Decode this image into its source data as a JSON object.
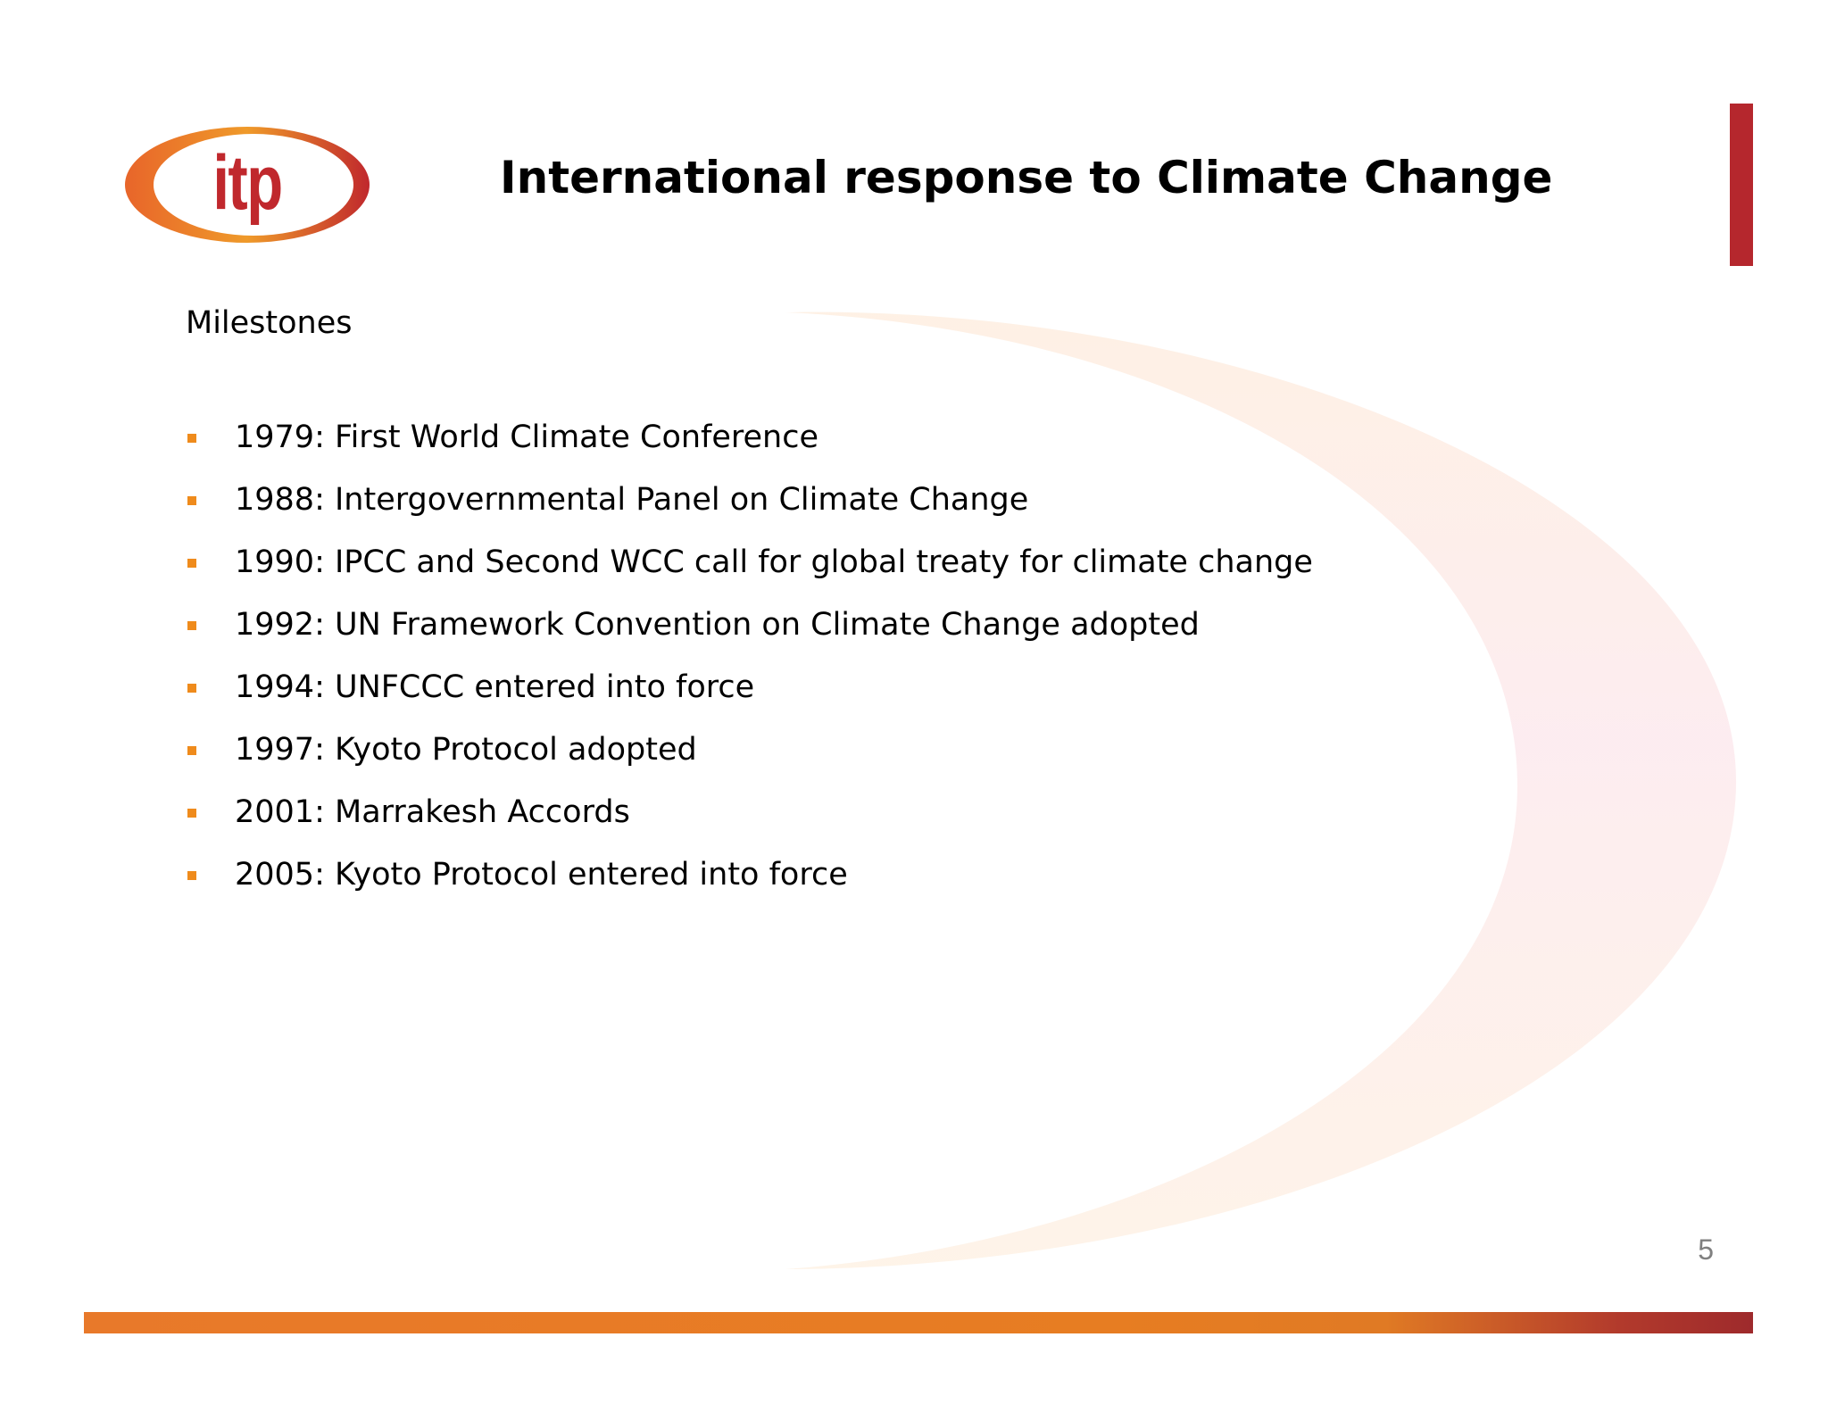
{
  "slide": {
    "logo_text": "itp",
    "title": "International response to Climate Change",
    "subheading": "Milestones",
    "milestones": [
      "1979: First World Climate Conference",
      "1988: Intergovernmental Panel on Climate Change",
      "1990: IPCC and Second WCC call for global treaty for climate change",
      "1992: UN Framework Convention on Climate Change adopted",
      "1994: UNFCCC entered into force",
      "1997: Kyoto Protocol adopted",
      "2001: Marrakesh Accords",
      "2005: Kyoto Protocol entered into force"
    ],
    "page_number": "5"
  },
  "colors": {
    "accent_red": "#b5272d",
    "accent_orange": "#ef8b1c",
    "logo_red": "#c0282d"
  },
  "icons": {
    "logo": "itp-logo-ellipse",
    "bullet": "square-bullet-icon"
  }
}
